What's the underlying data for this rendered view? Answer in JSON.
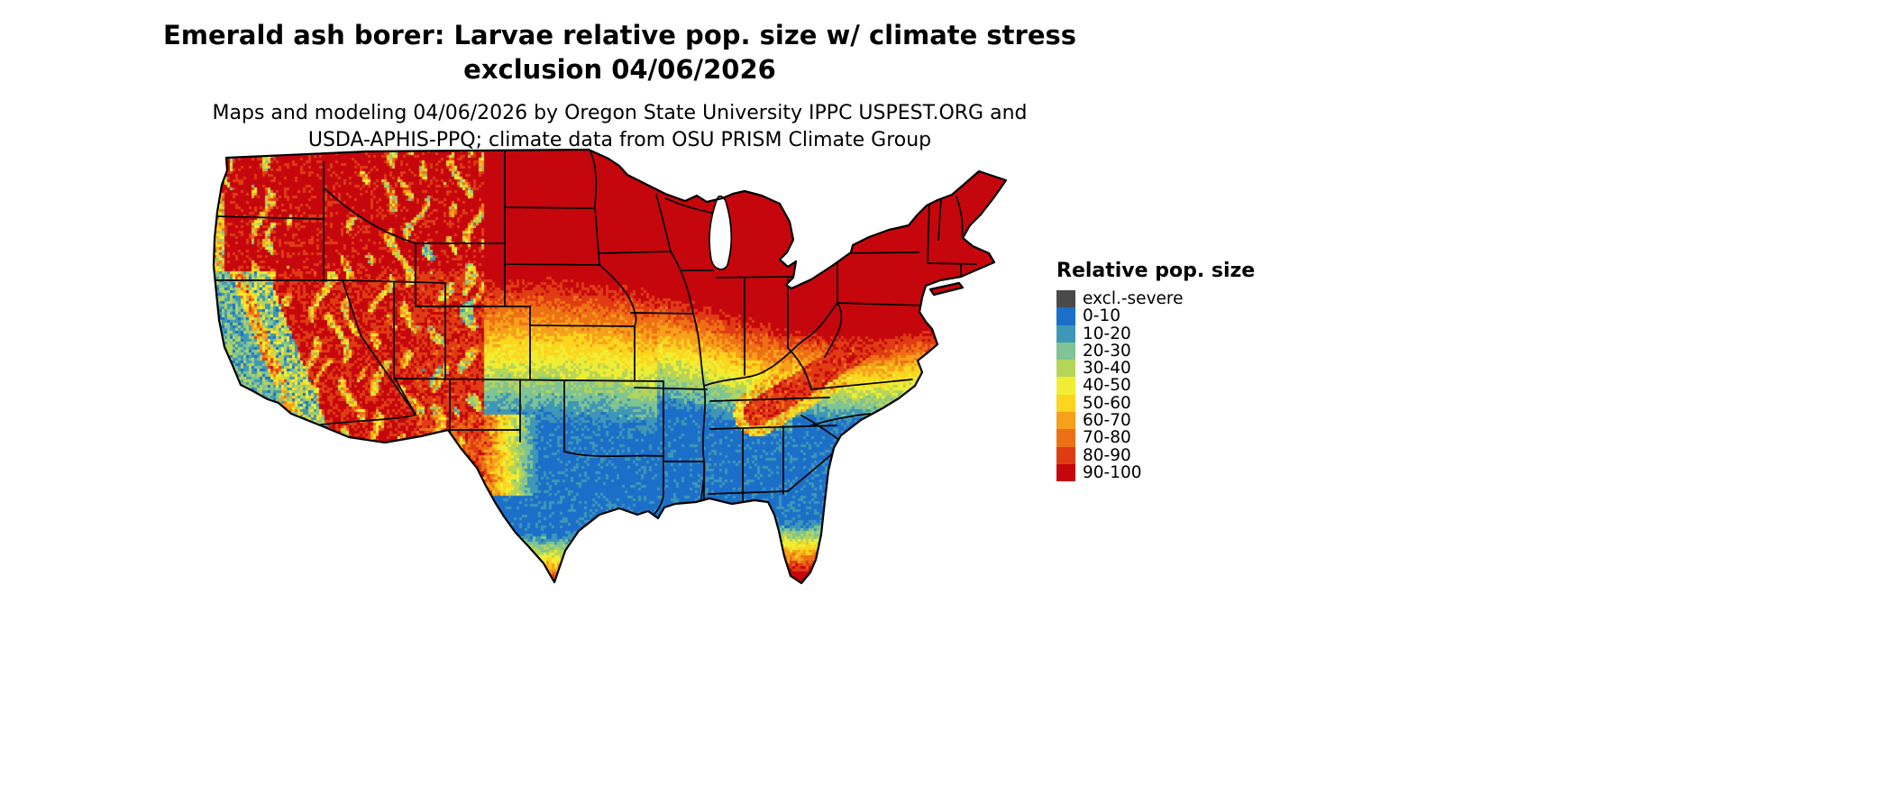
{
  "title": {
    "line1": "Emerald ash borer: Larvae relative pop. size w/ climate stress",
    "line2": "exclusion 04/06/2026"
  },
  "subtitle": {
    "line1": "Maps and modeling 04/06/2026 by Oregon State University IPPC USPEST.ORG and",
    "line2": "USDA-APHIS-PPQ; climate data from OSU PRISM Climate Group"
  },
  "legend": {
    "title": "Relative pop. size",
    "entries": [
      {
        "label": "excl.-severe",
        "color": "#4a4a4a"
      },
      {
        "label": "0-10",
        "color": "#1b6fc8"
      },
      {
        "label": "10-20",
        "color": "#3f97b7"
      },
      {
        "label": "20-30",
        "color": "#7fc494"
      },
      {
        "label": "30-40",
        "color": "#b5d45a"
      },
      {
        "label": "40-50",
        "color": "#f0ee34"
      },
      {
        "label": "50-60",
        "color": "#fbd51e"
      },
      {
        "label": "60-70",
        "color": "#f7a01b"
      },
      {
        "label": "70-80",
        "color": "#ee7014"
      },
      {
        "label": "80-90",
        "color": "#e03c14"
      },
      {
        "label": "90-100",
        "color": "#c5060c"
      }
    ]
  }
}
